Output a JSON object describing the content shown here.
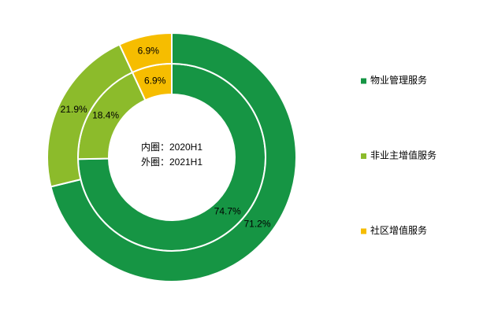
{
  "chart_data": {
    "type": "donut",
    "categories": [
      "物业管理服务",
      "非业主增值服务",
      "社区增值服务"
    ],
    "colors": [
      "#169544",
      "#8cbb2b",
      "#f6bd00"
    ],
    "series": [
      {
        "name": "内圈：2020H1",
        "values": [
          74.7,
          18.4,
          6.9
        ],
        "value_labels": [
          "74.7%",
          "18.4%",
          "6.9%"
        ]
      },
      {
        "name": "外圈：2021H1",
        "values": [
          71.2,
          21.9,
          6.9
        ],
        "value_labels": [
          "71.2%",
          "21.9%",
          "6.9%"
        ]
      }
    ]
  }
}
